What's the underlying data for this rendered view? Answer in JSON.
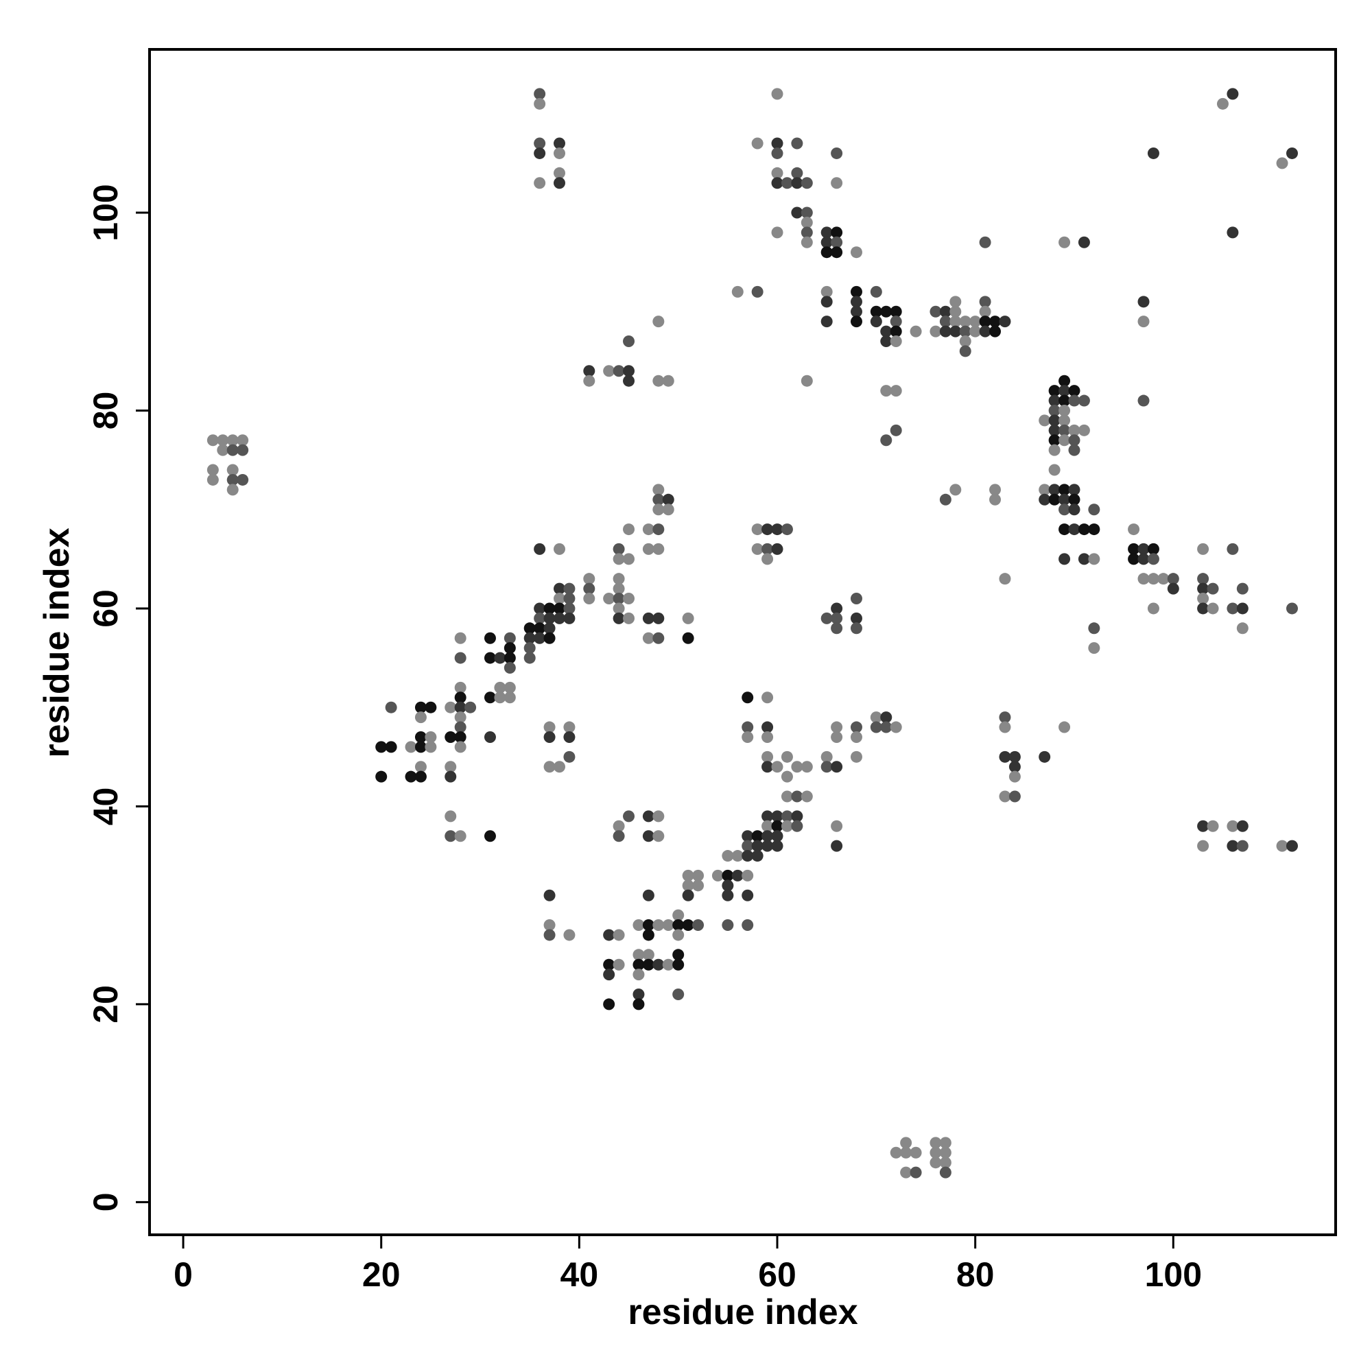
{
  "chart_data": {
    "type": "scatter",
    "xlabel": "residue index",
    "ylabel": "residue index",
    "xlim": [
      -3.4,
      116.4
    ],
    "ylim": [
      -3.3,
      116.5
    ],
    "xticks": [
      0,
      20,
      40,
      60,
      80,
      100
    ],
    "yticks": [
      0,
      20,
      40,
      60,
      80,
      100
    ],
    "x": [
      3,
      3,
      3,
      4,
      4,
      5,
      5,
      5,
      5,
      5,
      6,
      6,
      6,
      20,
      20,
      21,
      21,
      23,
      23,
      24,
      24,
      24,
      24,
      24,
      24,
      25,
      25,
      25,
      27,
      27,
      27,
      27,
      27,
      27,
      28,
      28,
      28,
      28,
      28,
      28,
      28,
      28,
      28,
      28,
      29,
      31,
      31,
      31,
      31,
      31,
      32,
      32,
      32,
      33,
      33,
      33,
      33,
      33,
      33,
      35,
      35,
      35,
      35,
      36,
      36,
      36,
      36,
      36,
      36,
      36,
      36,
      36,
      36,
      37,
      37,
      37,
      37,
      37,
      37,
      37,
      37,
      37,
      37,
      38,
      38,
      38,
      38,
      38,
      38,
      38,
      38,
      38,
      38,
      39,
      39,
      39,
      39,
      39,
      39,
      39,
      39,
      41,
      41,
      41,
      41,
      41,
      43,
      43,
      43,
      43,
      43,
      43,
      44,
      44,
      44,
      44,
      44,
      44,
      44,
      44,
      44,
      44,
      44,
      44,
      45,
      45,
      45,
      45,
      45,
      45,
      45,
      45,
      46,
      46,
      46,
      46,
      46,
      46,
      47,
      47,
      47,
      47,
      47,
      47,
      47,
      47,
      47,
      47,
      47,
      48,
      48,
      48,
      48,
      48,
      48,
      48,
      48,
      48,
      48,
      48,
      48,
      48,
      49,
      49,
      49,
      49,
      49,
      50,
      50,
      50,
      50,
      50,
      50,
      51,
      51,
      51,
      51,
      51,
      51,
      52,
      52,
      52,
      54,
      55,
      55,
      55,
      55,
      55,
      56,
      56,
      56,
      57,
      57,
      57,
      57,
      57,
      57,
      57,
      57,
      57,
      58,
      58,
      58,
      58,
      58,
      58,
      58,
      59,
      59,
      59,
      59,
      59,
      59,
      59,
      59,
      59,
      59,
      59,
      59,
      60,
      60,
      60,
      60,
      60,
      60,
      60,
      60,
      60,
      60,
      60,
      60,
      60,
      61,
      61,
      61,
      61,
      61,
      61,
      61,
      62,
      62,
      62,
      62,
      62,
      62,
      62,
      62,
      63,
      63,
      63,
      63,
      63,
      63,
      63,
      63,
      65,
      65,
      65,
      65,
      65,
      65,
      65,
      65,
      65,
      66,
      66,
      66,
      66,
      66,
      66,
      66,
      66,
      66,
      66,
      66,
      66,
      66,
      68,
      68,
      68,
      68,
      68,
      68,
      68,
      68,
      68,
      68,
      68,
      70,
      70,
      70,
      70,
      70,
      71,
      71,
      71,
      71,
      71,
      71,
      71,
      72,
      72,
      72,
      72,
      72,
      72,
      72,
      72,
      73,
      73,
      73,
      74,
      74,
      74,
      76,
      76,
      76,
      76,
      76,
      77,
      77,
      77,
      77,
      77,
      77,
      77,
      77,
      78,
      78,
      78,
      78,
      78,
      79,
      79,
      79,
      79,
      80,
      80,
      81,
      81,
      81,
      81,
      81,
      82,
      82,
      82,
      82,
      83,
      83,
      83,
      83,
      83,
      83,
      84,
      84,
      84,
      84,
      87,
      87,
      87,
      87,
      88,
      88,
      88,
      88,
      88,
      88,
      88,
      88,
      88,
      88,
      89,
      89,
      89,
      89,
      89,
      89,
      89,
      89,
      89,
      89,
      89,
      89,
      89,
      89,
      90,
      90,
      90,
      90,
      90,
      90,
      90,
      90,
      90,
      91,
      91,
      91,
      91,
      91,
      92,
      92,
      92,
      92,
      92,
      96,
      96,
      96,
      97,
      97,
      97,
      97,
      97,
      97,
      98,
      98,
      98,
      98,
      98,
      99,
      100,
      100,
      103,
      103,
      103,
      103,
      103,
      103,
      103,
      104,
      104,
      104,
      105,
      106,
      106,
      106,
      106,
      106,
      106,
      107,
      107,
      107,
      107,
      107,
      111,
      111,
      112,
      112,
      112
    ],
    "values": [
      77,
      74,
      73,
      77,
      76,
      77,
      76,
      74,
      73,
      72,
      77,
      76,
      73,
      46,
      43,
      50,
      46,
      46,
      43,
      50,
      49,
      47,
      46,
      44,
      43,
      50,
      47,
      46,
      50,
      47,
      44,
      43,
      39,
      37,
      57,
      55,
      52,
      51,
      50,
      49,
      48,
      47,
      46,
      37,
      50,
      57,
      55,
      51,
      47,
      37,
      55,
      52,
      51,
      57,
      56,
      55,
      54,
      52,
      51,
      58,
      57,
      56,
      55,
      112,
      111,
      107,
      106,
      103,
      66,
      60,
      59,
      58,
      57,
      60,
      59,
      58,
      57,
      48,
      47,
      44,
      31,
      28,
      27,
      107,
      106,
      104,
      103,
      66,
      62,
      61,
      60,
      59,
      44,
      62,
      61,
      60,
      59,
      48,
      47,
      45,
      27,
      84,
      83,
      63,
      62,
      61,
      84,
      61,
      27,
      24,
      23,
      20,
      84,
      66,
      65,
      63,
      62,
      61,
      60,
      59,
      38,
      37,
      27,
      24,
      87,
      84,
      83,
      68,
      65,
      61,
      59,
      39,
      28,
      25,
      24,
      23,
      21,
      20,
      68,
      66,
      59,
      57,
      39,
      37,
      31,
      28,
      27,
      25,
      24,
      89,
      83,
      72,
      71,
      70,
      68,
      66,
      59,
      57,
      39,
      37,
      28,
      24,
      83,
      71,
      70,
      28,
      24,
      29,
      28,
      27,
      25,
      24,
      21,
      59,
      57,
      33,
      32,
      31,
      28,
      33,
      32,
      28,
      33,
      35,
      33,
      32,
      31,
      28,
      92,
      35,
      33,
      51,
      48,
      47,
      37,
      36,
      35,
      33,
      31,
      28,
      107,
      92,
      68,
      66,
      37,
      36,
      35,
      68,
      66,
      65,
      51,
      48,
      47,
      45,
      44,
      39,
      38,
      37,
      36,
      112,
      107,
      106,
      104,
      103,
      98,
      68,
      66,
      44,
      39,
      38,
      37,
      36,
      103,
      68,
      45,
      43,
      41,
      39,
      38,
      107,
      104,
      103,
      100,
      44,
      41,
      39,
      38,
      103,
      100,
      99,
      98,
      97,
      83,
      44,
      41,
      98,
      97,
      96,
      92,
      91,
      89,
      59,
      45,
      44,
      106,
      103,
      98,
      97,
      96,
      60,
      59,
      58,
      48,
      47,
      44,
      38,
      36,
      96,
      92,
      91,
      90,
      89,
      61,
      59,
      58,
      48,
      47,
      45,
      92,
      90,
      89,
      49,
      48,
      90,
      88,
      87,
      82,
      77,
      49,
      48,
      90,
      89,
      88,
      87,
      82,
      78,
      48,
      5,
      6,
      5,
      3,
      88,
      5,
      3,
      90,
      88,
      6,
      5,
      4,
      90,
      89,
      88,
      71,
      6,
      5,
      4,
      3,
      91,
      90,
      89,
      88,
      72,
      89,
      88,
      87,
      86,
      89,
      88,
      97,
      91,
      90,
      89,
      88,
      89,
      88,
      72,
      71,
      89,
      63,
      49,
      48,
      45,
      41,
      45,
      44,
      43,
      41,
      79,
      72,
      71,
      45,
      82,
      81,
      80,
      79,
      78,
      77,
      76,
      74,
      72,
      71,
      97,
      83,
      82,
      81,
      80,
      79,
      78,
      77,
      72,
      71,
      70,
      68,
      65,
      48,
      82,
      81,
      78,
      77,
      76,
      72,
      71,
      70,
      68,
      97,
      81,
      78,
      68,
      65,
      70,
      68,
      65,
      58,
      56,
      68,
      66,
      65,
      91,
      89,
      81,
      66,
      65,
      63,
      106,
      66,
      65,
      63,
      60,
      63,
      63,
      62,
      66,
      63,
      62,
      61,
      60,
      38,
      36,
      62,
      60,
      38,
      111,
      112,
      98,
      66,
      60,
      38,
      36,
      62,
      60,
      58,
      38,
      36,
      105,
      36,
      106,
      60,
      36
    ],
    "colors": [
      "#888",
      "#888",
      "#888",
      "#888",
      "#888",
      "#888",
      "#555",
      "#888",
      "#555",
      "#888",
      "#888",
      "#555",
      "#555",
      "#111",
      "#111",
      "#555",
      "#111",
      "#888",
      "#111",
      "#111",
      "#888",
      "#111",
      "#111",
      "#888",
      "#111",
      "#111",
      "#888",
      "#888",
      "#888",
      "#111",
      "#888",
      "#333",
      "#888",
      "#555",
      "#888",
      "#555",
      "#888",
      "#111",
      "#333",
      "#888",
      "#555",
      "#111",
      "#888",
      "#888",
      "#555",
      "#111",
      "#111",
      "#111",
      "#333",
      "#111",
      "#333",
      "#888",
      "#888",
      "#555",
      "#111",
      "#111",
      "#555",
      "#888",
      "#888",
      "#111",
      "#333",
      "#555",
      "#555",
      "#555",
      "#888",
      "#555",
      "#333",
      "#888",
      "#333",
      "#333",
      "#555",
      "#111",
      "#333",
      "#111",
      "#333",
      "#333",
      "#111",
      "#888",
      "#333",
      "#888",
      "#333",
      "#888",
      "#555",
      "#333",
      "#888",
      "#888",
      "#333",
      "#888",
      "#333",
      "#888",
      "#111",
      "#333",
      "#888",
      "#555",
      "#555",
      "#555",
      "#333",
      "#888",
      "#333",
      "#555",
      "#888",
      "#333",
      "#888",
      "#888",
      "#555",
      "#888",
      "#888",
      "#888",
      "#333",
      "#111",
      "#333",
      "#111",
      "#555",
      "#555",
      "#888",
      "#888",
      "#888",
      "#555",
      "#888",
      "#333",
      "#888",
      "#555",
      "#888",
      "#888",
      "#555",
      "#333",
      "#333",
      "#888",
      "#888",
      "#888",
      "#888",
      "#555",
      "#888",
      "#888",
      "#111",
      "#888",
      "#333",
      "#111",
      "#888",
      "#888",
      "#333",
      "#888",
      "#333",
      "#333",
      "#333",
      "#111",
      "#111",
      "#888",
      "#111",
      "#888",
      "#888",
      "#888",
      "#555",
      "#888",
      "#555",
      "#888",
      "#333",
      "#555",
      "#888",
      "#888",
      "#888",
      "#333",
      "#888",
      "#333",
      "#888",
      "#888",
      "#888",
      "#888",
      "#111",
      "#888",
      "#111",
      "#111",
      "#555",
      "#888",
      "#111",
      "#888",
      "#888",
      "#333",
      "#111",
      "#888",
      "#888",
      "#555",
      "#888",
      "#888",
      "#111",
      "#333",
      "#333",
      "#555",
      "#888",
      "#888",
      "#333",
      "#111",
      "#555",
      "#888",
      "#333",
      "#555",
      "#333",
      "#888",
      "#333",
      "#555",
      "#888",
      "#555",
      "#888",
      "#888",
      "#111",
      "#333",
      "#333",
      "#333",
      "#555",
      "#888",
      "#888",
      "#333",
      "#888",
      "#888",
      "#333",
      "#333",
      "#888",
      "#333",
      "#333",
      "#888",
      "#333",
      "#555",
      "#888",
      "#333",
      "#888",
      "#333",
      "#333",
      "#888",
      "#333",
      "#111",
      "#333",
      "#333",
      "#555",
      "#555",
      "#888",
      "#888",
      "#888",
      "#555",
      "#888",
      "#555",
      "#555",
      "#333",
      "#333",
      "#888",
      "#555",
      "#333",
      "#555",
      "#555",
      "#555",
      "#888",
      "#555",
      "#888",
      "#888",
      "#888",
      "#888",
      "#333",
      "#333",
      "#111",
      "#888",
      "#333",
      "#333",
      "#555",
      "#888",
      "#555",
      "#555",
      "#888",
      "#111",
      "#555",
      "#111",
      "#333",
      "#555",
      "#555",
      "#888",
      "#888",
      "#333",
      "#888",
      "#333",
      "#888",
      "#111",
      "#333",
      "#333",
      "#111",
      "#555",
      "#333",
      "#555",
      "#555",
      "#888",
      "#888",
      "#555",
      "#111",
      "#333",
      "#888",
      "#555",
      "#111",
      "#333",
      "#333",
      "#888",
      "#555",
      "#333",
      "#555",
      "#111",
      "#555",
      "#111",
      "#888",
      "#888",
      "#555",
      "#888",
      "#888",
      "#888",
      "#888",
      "#888",
      "#888",
      "#888",
      "#555",
      "#555",
      "#888",
      "#888",
      "#888",
      "#888",
      "#333",
      "#555",
      "#333",
      "#555",
      "#888",
      "#888",
      "#888",
      "#555",
      "#888",
      "#888",
      "#888",
      "#333",
      "#888",
      "#888",
      "#555",
      "#888",
      "#555",
      "#888",
      "#888",
      "#555",
      "#555",
      "#888",
      "#111",
      "#333",
      "#111",
      "#111",
      "#888",
      "#888",
      "#333",
      "#888",
      "#555",
      "#888",
      "#333",
      "#888",
      "#333",
      "#333",
      "#888",
      "#555",
      "#888",
      "#888",
      "#333",
      "#333",
      "#111",
      "#333",
      "#555",
      "#333",
      "#333",
      "#111",
      "#888",
      "#888",
      "#333",
      "#111",
      "#888",
      "#111",
      "#333",
      "#111",
      "#888",
      "#888",
      "#555",
      "#888",
      "#111",
      "#333",
      "#555",
      "#111",
      "#333",
      "#888",
      "#111",
      "#555",
      "#888",
      "#555",
      "#555",
      "#333",
      "#111",
      "#333",
      "#333",
      "#333",
      "#555",
      "#888",
      "#111",
      "#333",
      "#555",
      "#111",
      "#888",
      "#555",
      "#888",
      "#888",
      "#111",
      "#111",
      "#333",
      "#888",
      "#555",
      "#333",
      "#333",
      "#888",
      "#333",
      "#111",
      "#555",
      "#888",
      "#888",
      "#888",
      "#555",
      "#333",
      "#888",
      "#555",
      "#333",
      "#888",
      "#333",
      "#333",
      "#888",
      "#555",
      "#888",
      "#888",
      "#888",
      "#333",
      "#333",
      "#555",
      "#555",
      "#888",
      "#333",
      "#555",
      "#333",
      "#888",
      "#333",
      "#555",
      "#888",
      "#888",
      "#333",
      "#555",
      "#333"
    ]
  }
}
